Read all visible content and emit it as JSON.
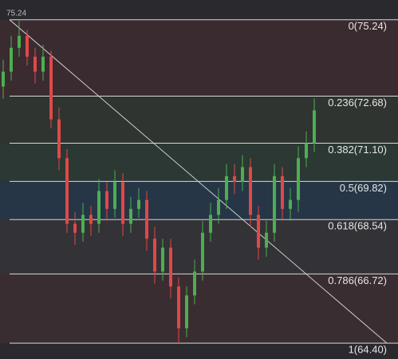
{
  "chart_data": {
    "type": "candlestick",
    "corner_label": "75.24",
    "ylim": [
      63.87,
      75.9
    ],
    "open": [
      73.0,
      73.5,
      74.3,
      74.7,
      74.0,
      73.5,
      74.0,
      71.9,
      70.6,
      68.4,
      68.1,
      68.7,
      68.4,
      69.5,
      68.9,
      69.8,
      68.4,
      68.9,
      69.2,
      67.9,
      66.8,
      67.6,
      66.3,
      64.9,
      66.0,
      66.8,
      68.1,
      68.7,
      69.2,
      70.0,
      69.8,
      70.3,
      68.7,
      67.6,
      68.1,
      70.0,
      68.9,
      69.2,
      70.6,
      71.1
    ],
    "high": [
      73.9,
      74.7,
      75.2,
      74.9,
      74.3,
      74.4,
      74.2,
      72.3,
      70.9,
      68.8,
      69.1,
      69.0,
      69.9,
      69.8,
      70.2,
      70.1,
      69.3,
      69.6,
      69.5,
      68.3,
      67.9,
      67.9,
      66.6,
      66.3,
      67.2,
      68.5,
      69.1,
      69.6,
      70.4,
      70.4,
      70.7,
      70.6,
      69.0,
      68.5,
      70.4,
      70.3,
      69.6,
      71.0,
      71.5,
      72.6
    ],
    "low": [
      72.6,
      73.2,
      74.0,
      73.7,
      73.1,
      73.2,
      71.6,
      70.2,
      68.1,
      67.7,
      67.8,
      68.0,
      68.1,
      68.5,
      68.6,
      68.0,
      68.1,
      68.6,
      67.5,
      66.4,
      66.5,
      65.9,
      64.4,
      64.6,
      65.7,
      66.5,
      67.8,
      68.4,
      68.9,
      69.4,
      69.5,
      68.3,
      67.2,
      67.3,
      67.8,
      68.5,
      68.5,
      68.8,
      70.3,
      70.8
    ],
    "close": [
      73.5,
      74.3,
      74.7,
      74.0,
      73.5,
      74.0,
      71.9,
      70.6,
      68.4,
      68.1,
      68.7,
      68.4,
      69.5,
      68.9,
      69.8,
      68.4,
      68.9,
      69.2,
      67.9,
      66.8,
      67.6,
      66.3,
      64.9,
      66.0,
      66.8,
      68.1,
      68.7,
      69.2,
      70.0,
      69.8,
      70.3,
      68.7,
      67.6,
      68.1,
      70.0,
      68.9,
      69.2,
      70.6,
      71.1,
      72.2
    ],
    "up_color": "#4caf50",
    "down_color": "#e04848",
    "levels": [
      {
        "label": "0(75.24)",
        "value": 75.24,
        "color": "#3a2b30"
      },
      {
        "label": "0.236(72.68)",
        "value": 72.68,
        "color": "#2f3430"
      },
      {
        "label": "0.382(71.10)",
        "value": 71.1,
        "color": "#2b3833"
      },
      {
        "label": "0.5(69.82)",
        "value": 69.82,
        "color": "#263646"
      },
      {
        "label": "0.618(68.54)",
        "value": 68.54,
        "color": "#333236"
      },
      {
        "label": "0.786(66.72)",
        "value": 66.72,
        "color": "#3a2d31"
      },
      {
        "label": "1(64.40)",
        "value": 64.4
      }
    ]
  }
}
